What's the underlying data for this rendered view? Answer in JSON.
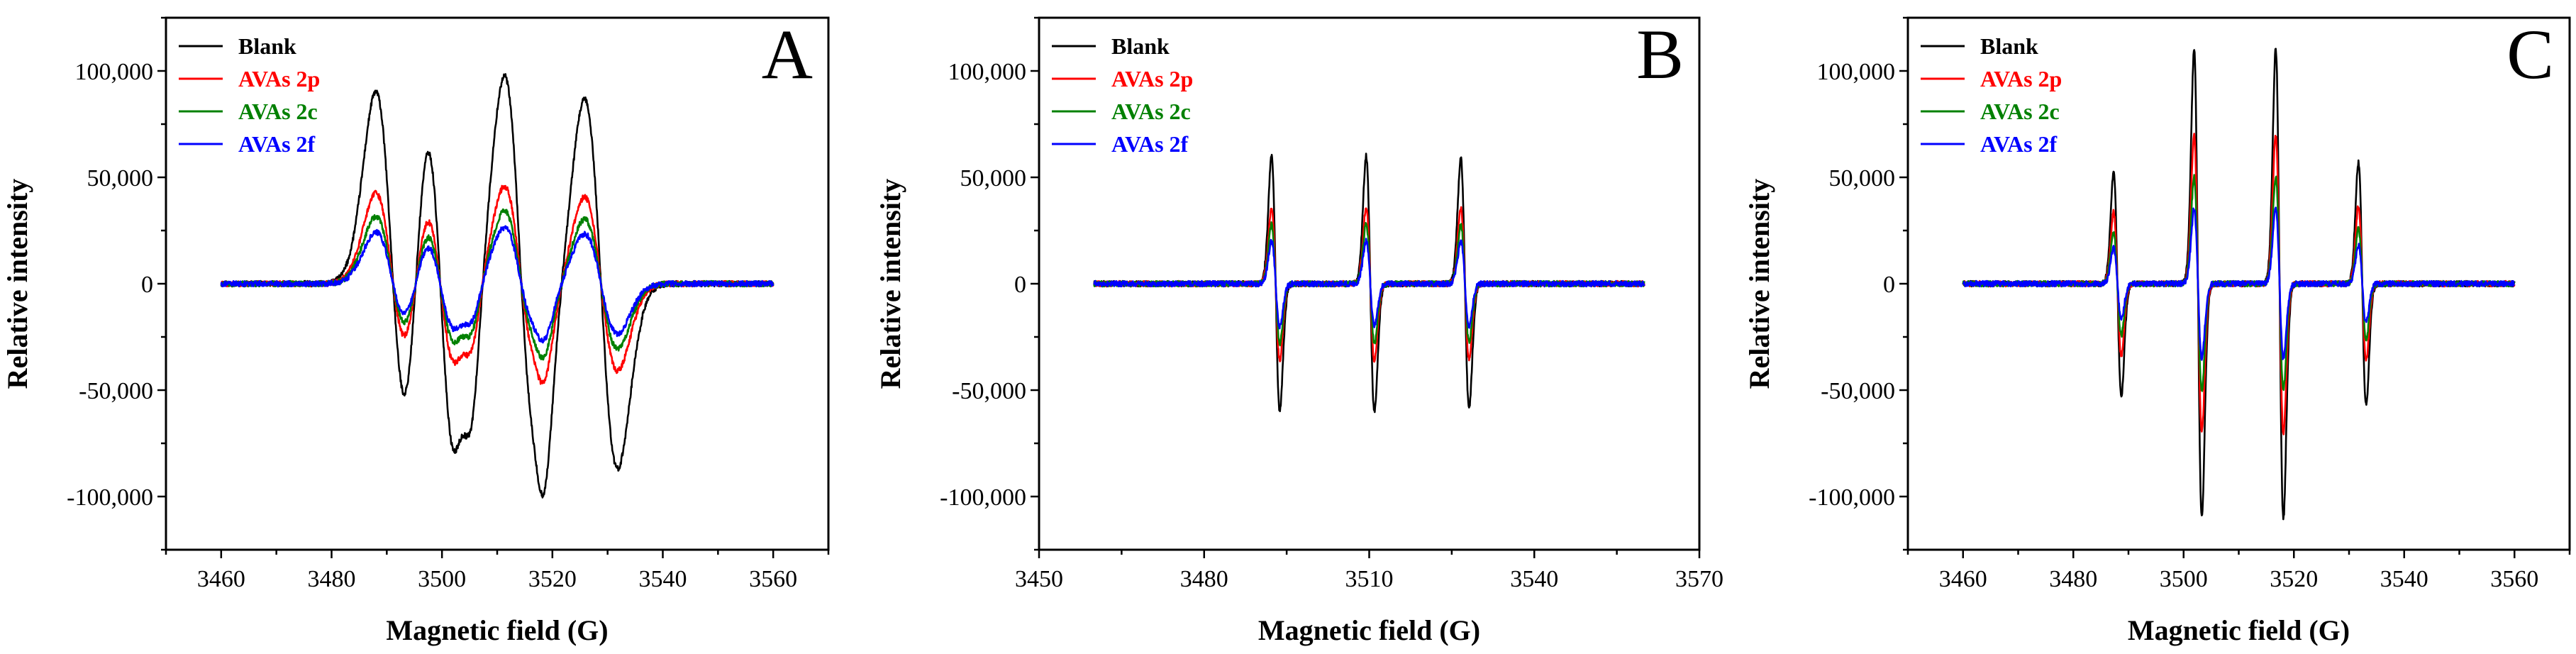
{
  "chart_data": [
    {
      "type": "line",
      "panel_label": "A",
      "xlabel": "Magnetic field (G)",
      "ylabel": "Relative intensity",
      "xlim": [
        3450,
        3570
      ],
      "ylim": [
        -125000,
        125000
      ],
      "xticks": [
        3460,
        3480,
        3500,
        3520,
        3540,
        3560
      ],
      "xtick_labels": [
        "3460",
        "3480",
        "3500",
        "3520",
        "3540",
        "3560"
      ],
      "yticks": [
        -100000,
        -50000,
        0,
        50000,
        100000
      ],
      "ytick_labels": [
        "-100,000",
        "-50,000",
        "0",
        "50,000",
        "100,000"
      ],
      "legend": [
        "Blank",
        "AVAs 2p",
        "AVAs 2c",
        "AVAs 2f"
      ],
      "legend_position": "top-left",
      "x_range": [
        3460,
        3560
      ],
      "lines": [
        {
          "center": 3491,
          "width": 3.0,
          "amplitude": 0.9
        },
        {
          "center": 3499.8,
          "width": 3.0,
          "amplitude": 0.98
        },
        {
          "center": 3504.5,
          "width": 1.4,
          "amplitude": 0.22
        },
        {
          "center": 3514.3,
          "width": 3.0,
          "amplitude": 0.98
        },
        {
          "center": 3517.7,
          "width": 1.4,
          "amplitude": 0.18
        },
        {
          "center": 3528.8,
          "width": 3.0,
          "amplitude": 0.87
        }
      ],
      "series": [
        {
          "name": "Blank",
          "color": "#000000",
          "peak_intensity": 100000
        },
        {
          "name": "AVAs 2p",
          "color": "#ff0000",
          "peak_intensity": 47000
        },
        {
          "name": "AVAs 2c",
          "color": "#008000",
          "peak_intensity": 35000
        },
        {
          "name": "AVAs 2f",
          "color": "#0000ff",
          "peak_intensity": 27000
        }
      ]
    },
    {
      "type": "line",
      "panel_label": "B",
      "xlabel": "Magnetic field (G)",
      "ylabel": "Relative intensity",
      "xlim": [
        3450,
        3570
      ],
      "ylim": [
        -125000,
        125000
      ],
      "xticks": [
        3450,
        3480,
        3510,
        3540,
        3570
      ],
      "xtick_labels": [
        "3450",
        "3480",
        "3510",
        "3540",
        "3570"
      ],
      "yticks": [
        -100000,
        -50000,
        0,
        50000,
        100000
      ],
      "ytick_labels": [
        "-100,000",
        "-50,000",
        "0",
        "50,000",
        "100,000"
      ],
      "legend": [
        "Blank",
        "AVAs 2p",
        "AVAs 2c",
        "AVAs 2f"
      ],
      "legend_position": "top-left",
      "x_range": [
        3460,
        3560
      ],
      "lines": [
        {
          "center": 3493,
          "width": 0.75,
          "amplitude": 1.0
        },
        {
          "center": 3510.2,
          "width": 0.75,
          "amplitude": 1.0
        },
        {
          "center": 3527.4,
          "width": 0.75,
          "amplitude": 0.98
        }
      ],
      "series": [
        {
          "name": "Blank",
          "color": "#000000",
          "peak_intensity": 60000
        },
        {
          "name": "AVAs 2p",
          "color": "#ff0000",
          "peak_intensity": 36000
        },
        {
          "name": "AVAs 2c",
          "color": "#008000",
          "peak_intensity": 28000
        },
        {
          "name": "AVAs 2f",
          "color": "#0000ff",
          "peak_intensity": 20000
        }
      ]
    },
    {
      "type": "line",
      "panel_label": "C",
      "xlabel": "Magnetic field (G)",
      "ylabel": "Relative intensity",
      "xlim": [
        3450,
        3570
      ],
      "ylim": [
        -125000,
        125000
      ],
      "xticks": [
        3460,
        3480,
        3500,
        3520,
        3540,
        3560
      ],
      "xtick_labels": [
        "3460",
        "3480",
        "3500",
        "3520",
        "3540",
        "3560"
      ],
      "yticks": [
        -100000,
        -50000,
        0,
        50000,
        100000
      ],
      "ytick_labels": [
        "-100,000",
        "-50,000",
        "0",
        "50,000",
        "100,000"
      ],
      "legend": [
        "Blank",
        "AVAs 2p",
        "AVAs 2c",
        "AVAs 2f"
      ],
      "legend_position": "top-left",
      "x_range": [
        3460,
        3560
      ],
      "lines": [
        {
          "center": 3488,
          "width": 0.7,
          "amplitude": 0.48
        },
        {
          "center": 3502.6,
          "width": 0.7,
          "amplitude": 1.0
        },
        {
          "center": 3517.4,
          "width": 0.7,
          "amplitude": 1.0
        },
        {
          "center": 3532.4,
          "width": 0.7,
          "amplitude": 0.52
        }
      ],
      "series": [
        {
          "name": "Blank",
          "color": "#000000",
          "peak_intensity": 110000
        },
        {
          "name": "AVAs 2p",
          "color": "#ff0000",
          "peak_intensity": 70000
        },
        {
          "name": "AVAs 2c",
          "color": "#008000",
          "peak_intensity": 50000
        },
        {
          "name": "AVAs 2f",
          "color": "#0000ff",
          "peak_intensity": 35000
        }
      ]
    }
  ]
}
